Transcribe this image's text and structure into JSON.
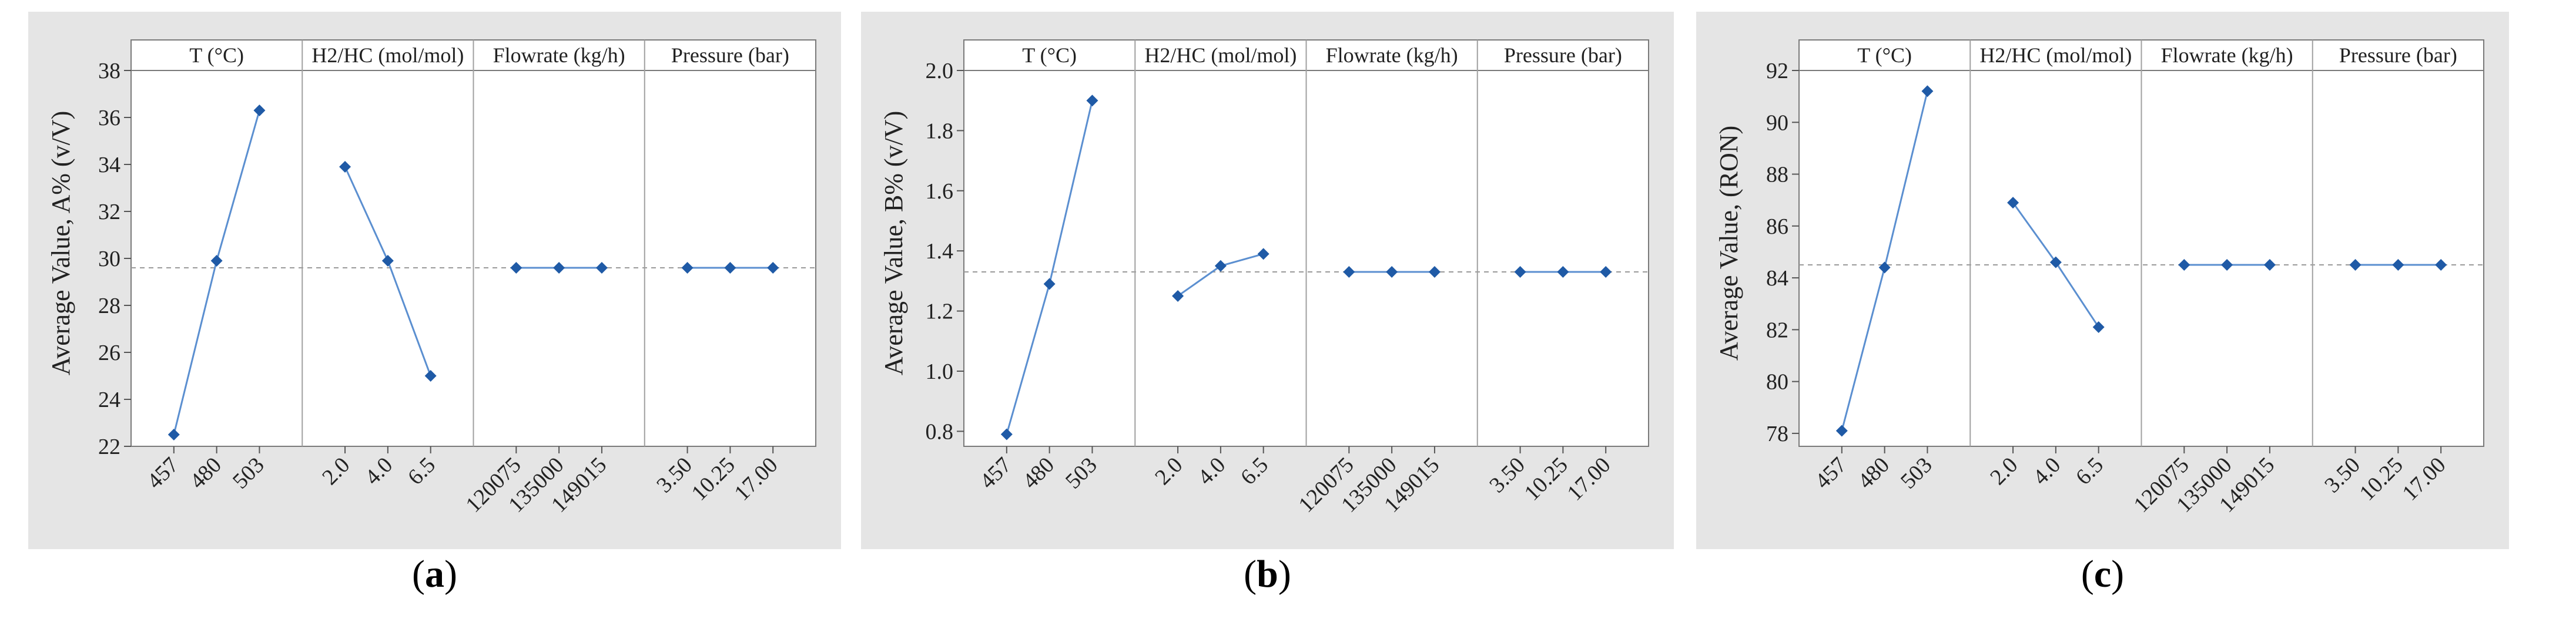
{
  "colors": {
    "line": "#5b8fd0",
    "marker": "#1f5aa6",
    "reference": "#9a9a9a",
    "panel_bg": "#e5e5e5"
  },
  "chart_data": [
    {
      "type": "line",
      "panel_label": "a",
      "ylabel": "Average Value,  A% (v/V)",
      "ylim": [
        22,
        38
      ],
      "yticks": [
        22,
        24,
        26,
        28,
        30,
        32,
        34,
        36,
        38
      ],
      "reference_line": 29.6,
      "factors": [
        {
          "name": "T (°C)",
          "categories": [
            "457",
            "480",
            "503"
          ],
          "values": [
            22.5,
            29.9,
            36.3
          ]
        },
        {
          "name": "H2/HC (mol/mol)",
          "categories": [
            "2.0",
            "4.0",
            "6.5"
          ],
          "values": [
            33.9,
            29.9,
            25.0
          ]
        },
        {
          "name": "Flowrate (kg/h)",
          "categories": [
            "120075",
            "135000",
            "149015"
          ],
          "values": [
            29.6,
            29.6,
            29.6
          ]
        },
        {
          "name": "Pressure (bar)",
          "categories": [
            "3.50",
            "10.25",
            "17.00"
          ],
          "values": [
            29.6,
            29.6,
            29.6
          ]
        }
      ]
    },
    {
      "type": "line",
      "panel_label": "b",
      "ylabel": "Average Value,  B% (v/V)",
      "ylim": [
        0.75,
        2.0
      ],
      "yticks": [
        0.8,
        1.0,
        1.2,
        1.4,
        1.6,
        1.8,
        2.0
      ],
      "ytick_labels": [
        "0.8",
        "1.0",
        "1.2",
        "1.4",
        "1.6",
        "1.8",
        "2.0"
      ],
      "reference_line": 1.33,
      "factors": [
        {
          "name": "T (°C)",
          "categories": [
            "457",
            "480",
            "503"
          ],
          "values": [
            0.79,
            1.29,
            1.9
          ]
        },
        {
          "name": "H2/HC (mol/mol)",
          "categories": [
            "2.0",
            "4.0",
            "6.5"
          ],
          "values": [
            1.25,
            1.35,
            1.39
          ]
        },
        {
          "name": "Flowrate (kg/h)",
          "categories": [
            "120075",
            "135000",
            "149015"
          ],
          "values": [
            1.33,
            1.33,
            1.33
          ]
        },
        {
          "name": "Pressure (bar)",
          "categories": [
            "3.50",
            "10.25",
            "17.00"
          ],
          "values": [
            1.33,
            1.33,
            1.33
          ]
        }
      ]
    },
    {
      "type": "line",
      "panel_label": "c",
      "ylabel": "Average Value, (RON)",
      "ylim": [
        77.5,
        92
      ],
      "yticks": [
        78,
        80,
        82,
        84,
        86,
        88,
        90,
        92
      ],
      "reference_line": 84.5,
      "factors": [
        {
          "name": "T (°C)",
          "categories": [
            "457",
            "480",
            "503"
          ],
          "values": [
            78.1,
            84.4,
            91.2
          ]
        },
        {
          "name": "H2/HC (mol/mol)",
          "categories": [
            "2.0",
            "4.0",
            "6.5"
          ],
          "values": [
            86.9,
            84.6,
            82.1
          ]
        },
        {
          "name": "Flowrate (kg/h)",
          "categories": [
            "120075",
            "135000",
            "149015"
          ],
          "values": [
            84.5,
            84.5,
            84.5
          ]
        },
        {
          "name": "Pressure (bar)",
          "categories": [
            "3.50",
            "10.25",
            "17.00"
          ],
          "values": [
            84.5,
            84.5,
            84.5
          ]
        }
      ]
    }
  ]
}
